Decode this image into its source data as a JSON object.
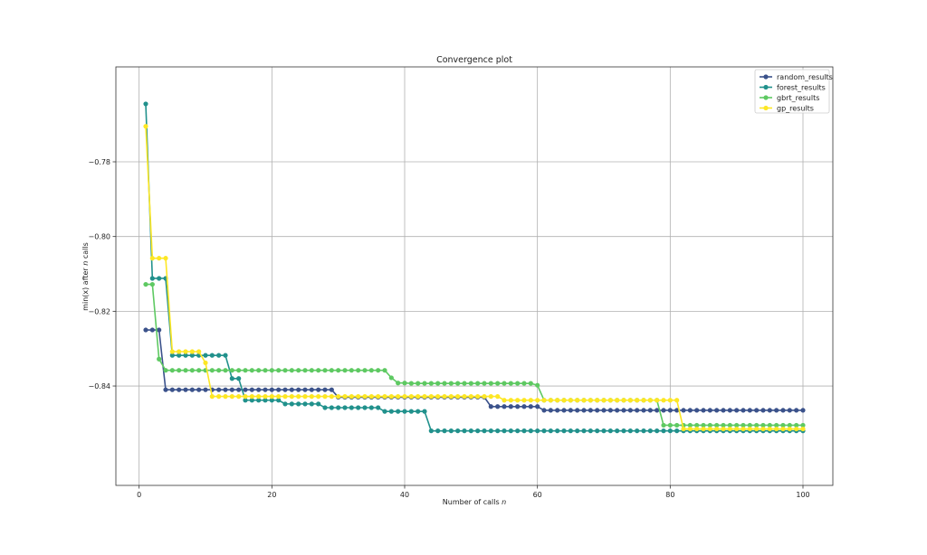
{
  "chart_data": {
    "type": "line",
    "title": "Convergence plot",
    "xlabel": "Number of calls n",
    "ylabel": "min(x) after n calls",
    "xlim": [
      -3.5,
      104.5
    ],
    "ylim": [
      -0.8666,
      -0.7546
    ],
    "xticks": [
      0,
      20,
      40,
      60,
      80,
      100
    ],
    "yticks": [
      -0.84,
      -0.82,
      -0.8,
      -0.78
    ],
    "ytick_labels": [
      "−0.84",
      "−0.82",
      "−0.80",
      "−0.78"
    ],
    "grid": true,
    "legend_position": "top-right",
    "series": [
      {
        "name": "random_results",
        "color": "#3b528b",
        "steps": [
          [
            1,
            -0.825
          ],
          [
            4,
            -0.841
          ],
          [
            30,
            -0.843
          ],
          [
            53,
            -0.8455
          ],
          [
            61,
            -0.8465
          ]
        ]
      },
      {
        "name": "forest_results",
        "color": "#21918c",
        "steps": [
          [
            1,
            -0.7645
          ],
          [
            2,
            -0.8112
          ],
          [
            5,
            -0.8318
          ],
          [
            14,
            -0.838
          ],
          [
            16,
            -0.8438
          ],
          [
            22,
            -0.8448
          ],
          [
            28,
            -0.8458
          ],
          [
            37,
            -0.8468
          ],
          [
            44,
            -0.852
          ]
        ]
      },
      {
        "name": "gbrt_results",
        "color": "#5ec962",
        "steps": [
          [
            1,
            -0.8128
          ],
          [
            3,
            -0.8328
          ],
          [
            4,
            -0.8358
          ],
          [
            38,
            -0.8378
          ],
          [
            39,
            -0.8392
          ],
          [
            41,
            -0.8393
          ],
          [
            60,
            -0.8398
          ],
          [
            61,
            -0.8438
          ],
          [
            79,
            -0.8505
          ]
        ]
      },
      {
        "name": "gp_results",
        "color": "#fde725",
        "steps": [
          [
            1,
            -0.7705
          ],
          [
            2,
            -0.8058
          ],
          [
            5,
            -0.8308
          ],
          [
            10,
            -0.8338
          ],
          [
            11,
            -0.8428
          ],
          [
            55,
            -0.8438
          ],
          [
            82,
            -0.8515
          ]
        ]
      }
    ]
  }
}
